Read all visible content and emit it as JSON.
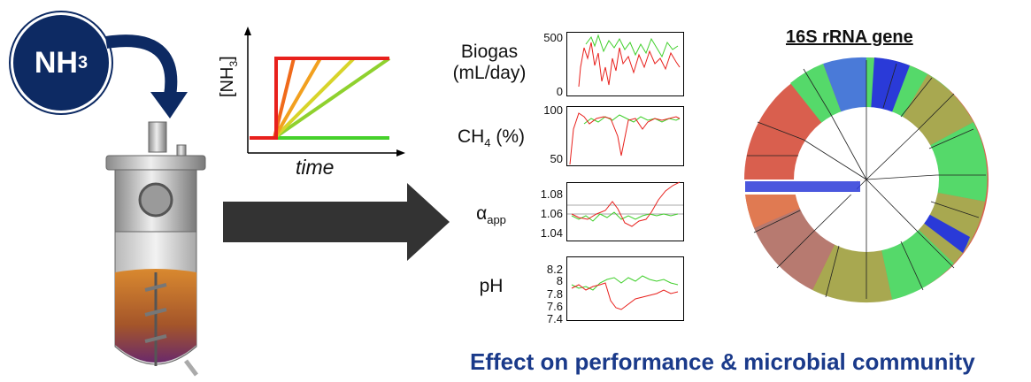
{
  "badge": {
    "text": "NH",
    "sub": "3"
  },
  "schematic": {
    "ylabel": "[NH",
    "ylabel_sub": "3",
    "ylabel_end": "]",
    "xlabel": "time"
  },
  "panels": {
    "biogas": {
      "line1": "Biogas",
      "line2": "(mL/day)",
      "ticks": [
        "500",
        "0"
      ]
    },
    "ch4": {
      "label": "CH",
      "sub": "4",
      "suffix": " (%)",
      "ticks": [
        "100",
        "50"
      ]
    },
    "alpha": {
      "label": "α",
      "sub": "app",
      "ticks": [
        "1.08",
        "1.06",
        "1.04"
      ]
    },
    "ph": {
      "label": "pH",
      "ticks": [
        "8.2",
        "8",
        "7.8",
        "7.6",
        "7.4"
      ]
    }
  },
  "tree_title": "16S rRNA gene",
  "footer": "Effect on performance & microbial community",
  "colors": {
    "navy": "#0d2a63",
    "arrow": "#333333",
    "red": "#e8201c",
    "green": "#3fcf2a",
    "footer": "#1a3a8a"
  }
}
